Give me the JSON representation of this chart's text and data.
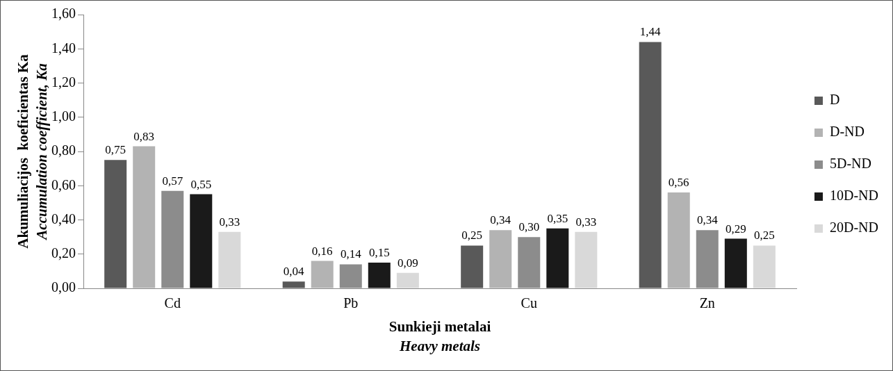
{
  "chart_data": {
    "type": "bar",
    "xlabel": "Sunkieji metalai\nHeavy metals",
    "ylabel": "Akumuliacijos  koeficientas Ka\nAccumulation coefficient, Ka",
    "categories": [
      "Cd",
      "Pb",
      "Cu",
      "Zn"
    ],
    "series": [
      {
        "name": "D",
        "color": "#595959",
        "values": [
          0.75,
          0.04,
          0.25,
          1.44
        ],
        "value_labels": [
          "0,75",
          "0,04",
          "0,25",
          "1,44"
        ]
      },
      {
        "name": "D-ND",
        "color": "#b3b3b3",
        "values": [
          0.83,
          0.16,
          0.34,
          0.56
        ],
        "value_labels": [
          "0,83",
          "0,16",
          "0,34",
          "0,56"
        ]
      },
      {
        "name": "5D-ND",
        "color": "#8c8c8c",
        "values": [
          0.57,
          0.14,
          0.3,
          0.34
        ],
        "value_labels": [
          "0,57",
          "0,14",
          "0,30",
          "0,34"
        ]
      },
      {
        "name": "10D-ND",
        "color": "#1a1a1a",
        "values": [
          0.55,
          0.15,
          0.35,
          0.29
        ],
        "value_labels": [
          "0,55",
          "0,15",
          "0,35",
          "0,29"
        ]
      },
      {
        "name": "20D-ND",
        "color": "#d9d9d9",
        "values": [
          0.33,
          0.09,
          0.33,
          0.25
        ],
        "value_labels": [
          "0,33",
          "0,09",
          "0,33",
          "0,25"
        ]
      }
    ],
    "ylim": [
      0,
      1.6
    ],
    "yticks": [
      {
        "value": 0,
        "label": "0,00"
      },
      {
        "value": 0.2,
        "label": "0,20"
      },
      {
        "value": 0.4,
        "label": "0,40"
      },
      {
        "value": 0.6,
        "label": "0,60"
      },
      {
        "value": 0.8,
        "label": "0,80"
      },
      {
        "value": 1,
        "label": "1,00"
      },
      {
        "value": 1.2,
        "label": "1,20"
      },
      {
        "value": 1.4,
        "label": "1,40"
      },
      {
        "value": 1.6,
        "label": "1,60"
      }
    ],
    "grid": false,
    "legend": "right"
  }
}
